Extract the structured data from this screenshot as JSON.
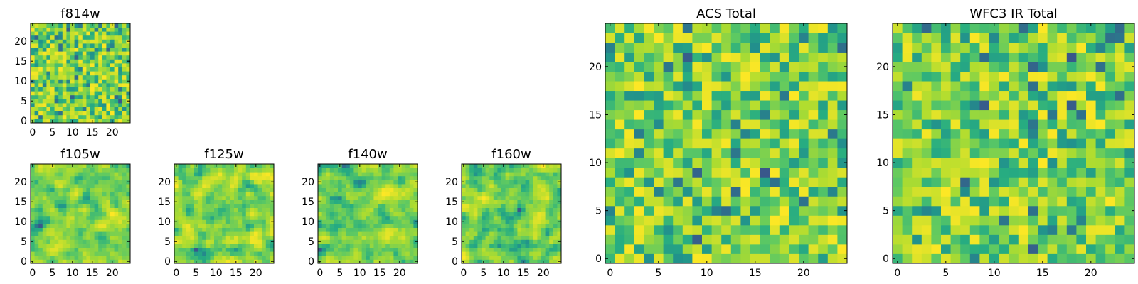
{
  "chart_data": [
    {
      "type": "heatmap",
      "title": "f814w",
      "size": 25,
      "seed": 814,
      "smooth": 0,
      "xticks": [
        0,
        5,
        10,
        15,
        20
      ],
      "yticks": [
        0,
        5,
        10,
        15,
        20
      ],
      "xlim": [
        -0.5,
        24.5
      ],
      "ylim": [
        -0.5,
        24.5
      ]
    },
    {
      "type": "heatmap",
      "title": "f105w",
      "size": 25,
      "seed": 105,
      "smooth": 1,
      "xticks": [
        0,
        5,
        10,
        15,
        20
      ],
      "yticks": [
        0,
        5,
        10,
        15,
        20
      ],
      "xlim": [
        -0.5,
        24.5
      ],
      "ylim": [
        -0.5,
        24.5
      ]
    },
    {
      "type": "heatmap",
      "title": "f125w",
      "size": 25,
      "seed": 125,
      "smooth": 1,
      "xticks": [
        0,
        5,
        10,
        15,
        20
      ],
      "yticks": [
        0,
        5,
        10,
        15,
        20
      ],
      "xlim": [
        -0.5,
        24.5
      ],
      "ylim": [
        -0.5,
        24.5
      ]
    },
    {
      "type": "heatmap",
      "title": "f140w",
      "size": 25,
      "seed": 140,
      "smooth": 1,
      "xticks": [
        0,
        5,
        10,
        15,
        20
      ],
      "yticks": [
        0,
        5,
        10,
        15,
        20
      ],
      "xlim": [
        -0.5,
        24.5
      ],
      "ylim": [
        -0.5,
        24.5
      ]
    },
    {
      "type": "heatmap",
      "title": "f160w",
      "size": 25,
      "seed": 160,
      "smooth": 1,
      "xticks": [
        0,
        5,
        10,
        15,
        20
      ],
      "yticks": [
        0,
        5,
        10,
        15,
        20
      ],
      "xlim": [
        -0.5,
        24.5
      ],
      "ylim": [
        -0.5,
        24.5
      ]
    },
    {
      "type": "heatmap",
      "title": "ACS Total",
      "size": 25,
      "seed": 7,
      "smooth": 0,
      "xticks": [
        0,
        5,
        10,
        15,
        20
      ],
      "yticks": [
        0,
        5,
        10,
        15,
        20
      ],
      "xlim": [
        -0.5,
        24.5
      ],
      "ylim": [
        -0.5,
        24.5
      ]
    },
    {
      "type": "heatmap",
      "title": "WFC3 IR Total",
      "size": 25,
      "seed": 3,
      "smooth": 0,
      "xticks": [
        0,
        5,
        10,
        15,
        20
      ],
      "yticks": [
        0,
        5,
        10,
        15,
        20
      ],
      "xlim": [
        -0.5,
        24.5
      ],
      "ylim": [
        -0.5,
        24.5
      ]
    }
  ],
  "colormap": [
    "#440154",
    "#3b528b",
    "#21918c",
    "#27ad81",
    "#5ec962",
    "#addc30",
    "#fde725"
  ]
}
